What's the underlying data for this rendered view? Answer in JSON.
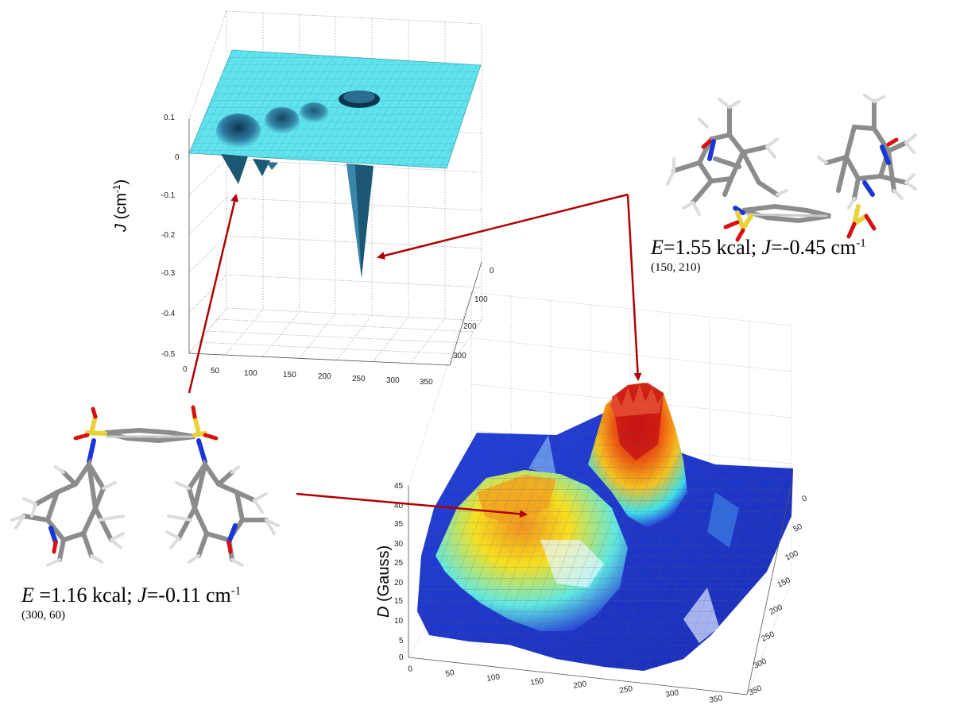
{
  "chart_data": [
    {
      "type": "surface",
      "ylabel_var": "J",
      "ylabel_unit": "(cm",
      "ylabel_exp": "-1",
      "ylabel_close": ")",
      "z_ticks": [
        "0.1",
        "0",
        "-0.1",
        "-0.2",
        "-0.3",
        "-0.4",
        "-0.5"
      ],
      "x_ticks": [
        "0",
        "50",
        "100",
        "150",
        "200",
        "250",
        "300",
        "350"
      ],
      "y_ticks": [
        "0",
        "100",
        "200",
        "300"
      ],
      "zlim": [
        -0.5,
        0.1
      ],
      "grid": true
    },
    {
      "type": "surface",
      "ylabel_var": "D",
      "ylabel_unit": "(Gauss)",
      "z_ticks": [
        "45",
        "40",
        "35",
        "30",
        "25",
        "20",
        "15",
        "10",
        "5",
        "0"
      ],
      "x_ticks": [
        "0",
        "50",
        "100",
        "150",
        "200",
        "250",
        "300",
        "350"
      ],
      "y_ticks": [
        "0",
        "50",
        "100",
        "150",
        "200",
        "250",
        "300",
        "350"
      ],
      "zlim": [
        0,
        45
      ],
      "grid": true
    }
  ],
  "annotations": [
    {
      "e_var": "E",
      "e_text": "=1.55 kcal; ",
      "j_var": "J",
      "j_text": "=-0.45 cm",
      "j_exp": "-1",
      "coords": "(150, 210)"
    },
    {
      "e_var": "E",
      "e_text": " =1.16 kcal; ",
      "j_var": "J",
      "j_text": "=-0.11 cm",
      "j_exp": "-1",
      "coords": "(300, 60)"
    }
  ],
  "colors": {
    "arrow": "#b00000",
    "flat_surface": "#5fe3ee",
    "sulfur": "#e8d23c",
    "oxygen": "#d81010",
    "nitrogen": "#1a36d8",
    "carbon": "#8c8c8c",
    "hydrogen": "#e0e0e0"
  }
}
